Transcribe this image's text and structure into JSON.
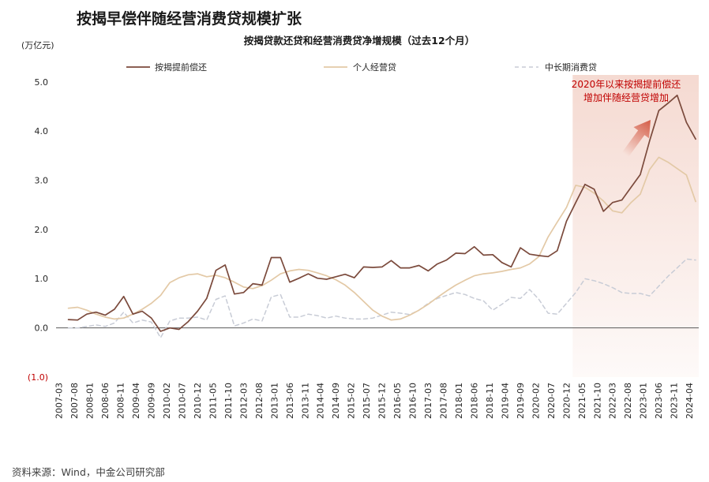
{
  "title": "按揭早偿伴随经营消费贷规模扩张",
  "source": "资料来源：Wind，中金公司研究部",
  "colors": {
    "axis": "#595959",
    "negative_label": "#c00000",
    "annotation": "#c00000",
    "highlight": "#f3d3c9",
    "arrow": "#d2553f"
  },
  "chart_data": {
    "type": "line",
    "title": "按揭贷款还贷和经营消费贷净增规模（过去12个月）",
    "ylabel": "(万亿元)",
    "xlabel": "",
    "ylim": [
      -1,
      5
    ],
    "xlim": [
      "2007-02",
      "2024-07"
    ],
    "grid": false,
    "legend": "top",
    "y_ticks": [
      5,
      4,
      3,
      2,
      1,
      0,
      -1
    ],
    "y_tick_labels": [
      "5.0",
      "4.0",
      "3.0",
      "2.0",
      "1.0",
      "0.0",
      "(1.0)"
    ],
    "x_tick_labels": [
      "2007-03",
      "2007-08",
      "2008-01",
      "2008-06",
      "2008-11",
      "2009-04",
      "2009-09",
      "2010-02",
      "2010-07",
      "2010-12",
      "2011-05",
      "2011-10",
      "2012-03",
      "2012-08",
      "2013-01",
      "2013-06",
      "2013-11",
      "2014-04",
      "2014-09",
      "2015-02",
      "2015-07",
      "2015-12",
      "2016-05",
      "2016-10",
      "2017-03",
      "2017-08",
      "2018-01",
      "2018-06",
      "2018-11",
      "2019-04",
      "2019-09",
      "2020-02",
      "2020-07",
      "2020-12",
      "2021-05",
      "2021-10",
      "2022-03",
      "2022-08",
      "2023-01",
      "2023-06",
      "2023-11",
      "2024-04"
    ],
    "x": [
      "2007-06",
      "2007-09",
      "2007-12",
      "2008-03",
      "2008-06",
      "2008-09",
      "2008-12",
      "2009-03",
      "2009-06",
      "2009-09",
      "2009-12",
      "2010-03",
      "2010-06",
      "2010-09",
      "2010-12",
      "2011-03",
      "2011-06",
      "2011-09",
      "2011-12",
      "2012-03",
      "2012-06",
      "2012-09",
      "2012-12",
      "2013-03",
      "2013-06",
      "2013-09",
      "2013-12",
      "2014-03",
      "2014-06",
      "2014-09",
      "2014-12",
      "2015-03",
      "2015-06",
      "2015-09",
      "2015-12",
      "2016-03",
      "2016-06",
      "2016-09",
      "2016-12",
      "2017-03",
      "2017-06",
      "2017-09",
      "2017-12",
      "2018-03",
      "2018-06",
      "2018-09",
      "2018-12",
      "2019-03",
      "2019-06",
      "2019-09",
      "2019-12",
      "2020-03",
      "2020-06",
      "2020-09",
      "2020-12",
      "2021-03",
      "2021-06",
      "2021-09",
      "2021-12",
      "2022-03",
      "2022-06",
      "2022-09",
      "2022-12",
      "2023-03",
      "2023-06",
      "2023-09",
      "2023-12",
      "2024-03",
      "2024-06"
    ],
    "series": [
      {
        "name": "按揭提前偿还",
        "color": "#7b4a3c",
        "line_style": "solid",
        "values": [
          0.17,
          0.16,
          0.28,
          0.32,
          0.26,
          0.38,
          0.64,
          0.28,
          0.34,
          0.2,
          -0.07,
          0.0,
          -0.03,
          0.13,
          0.34,
          0.6,
          1.17,
          1.28,
          0.69,
          0.72,
          0.9,
          0.87,
          1.43,
          1.43,
          0.93,
          1.01,
          1.1,
          1.01,
          0.99,
          1.04,
          1.09,
          1.02,
          1.24,
          1.23,
          1.24,
          1.37,
          1.22,
          1.22,
          1.27,
          1.16,
          1.3,
          1.38,
          1.52,
          1.51,
          1.65,
          1.48,
          1.49,
          1.33,
          1.24,
          1.63,
          1.5,
          1.47,
          1.45,
          1.57,
          2.17,
          2.55,
          2.92,
          2.82,
          2.37,
          2.55,
          2.6,
          2.86,
          3.12,
          3.8,
          4.42,
          4.57,
          4.73,
          4.18,
          3.84
        ]
      },
      {
        "name": "个人经营贷",
        "color": "#e3c9a6",
        "line_style": "solid",
        "values": [
          0.4,
          0.42,
          0.36,
          0.28,
          0.22,
          0.18,
          0.2,
          0.28,
          0.38,
          0.5,
          0.66,
          0.92,
          1.02,
          1.08,
          1.1,
          1.04,
          1.07,
          1.02,
          0.93,
          0.83,
          0.8,
          0.86,
          0.97,
          1.1,
          1.16,
          1.19,
          1.17,
          1.12,
          1.06,
          0.98,
          0.87,
          0.72,
          0.54,
          0.36,
          0.24,
          0.16,
          0.18,
          0.26,
          0.36,
          0.48,
          0.62,
          0.75,
          0.87,
          0.97,
          1.06,
          1.1,
          1.12,
          1.15,
          1.19,
          1.22,
          1.3,
          1.45,
          1.85,
          2.15,
          2.45,
          2.9,
          2.86,
          2.74,
          2.58,
          2.38,
          2.34,
          2.55,
          2.72,
          3.22,
          3.47,
          3.37,
          3.24,
          3.11,
          2.57
        ]
      },
      {
        "name": "中长期消费贷",
        "color": "#c8ccd6",
        "line_style": "dashed",
        "values": [
          0.0,
          0.0,
          0.03,
          0.06,
          0.03,
          0.1,
          0.32,
          0.1,
          0.16,
          0.12,
          -0.2,
          0.14,
          0.2,
          0.2,
          0.22,
          0.16,
          0.58,
          0.65,
          0.04,
          0.1,
          0.18,
          0.14,
          0.63,
          0.68,
          0.22,
          0.22,
          0.28,
          0.25,
          0.2,
          0.24,
          0.2,
          0.18,
          0.18,
          0.2,
          0.26,
          0.32,
          0.3,
          0.27,
          0.36,
          0.5,
          0.6,
          0.66,
          0.72,
          0.68,
          0.6,
          0.55,
          0.36,
          0.48,
          0.62,
          0.6,
          0.78,
          0.58,
          0.3,
          0.28,
          0.5,
          0.72,
          1.0,
          0.96,
          0.9,
          0.82,
          0.72,
          0.7,
          0.7,
          0.65,
          0.85,
          1.05,
          1.22,
          1.4,
          1.38
        ]
      }
    ],
    "highlight": {
      "from": "2021-02",
      "to": "2024-07"
    },
    "annotation": {
      "lines": [
        "2020年以来按揭提前偿还",
        "增加伴随经营贷增加"
      ]
    }
  }
}
